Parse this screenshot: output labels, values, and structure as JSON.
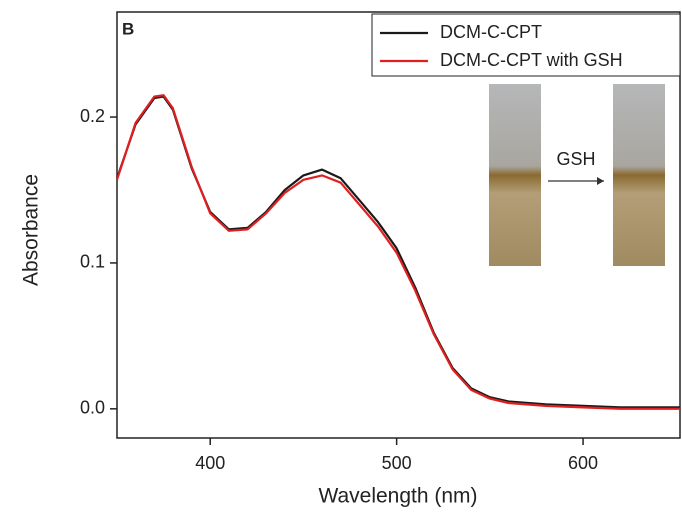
{
  "chart_data": {
    "type": "line",
    "panel_label": "B",
    "xlabel": "Wavelength (nm)",
    "ylabel": "Absorbance",
    "annotation": "GSH",
    "xlim": [
      350,
      652
    ],
    "ylim": [
      -0.02,
      0.272
    ],
    "xticks": [
      400,
      500,
      600
    ],
    "yticks": [
      {
        "value": 0,
        "label": "0.0"
      },
      0.1,
      0.2
    ],
    "legend": "upper right",
    "x": [
      350,
      360,
      370,
      375,
      380,
      390,
      400,
      410,
      420,
      430,
      440,
      450,
      460,
      470,
      480,
      490,
      500,
      510,
      520,
      530,
      540,
      550,
      560,
      580,
      600,
      620,
      652
    ],
    "series": [
      {
        "name": "DCM-C-CPT",
        "color": "#1a1a1a",
        "values": [
          0.158,
          0.195,
          0.213,
          0.214,
          0.205,
          0.165,
          0.135,
          0.123,
          0.124,
          0.135,
          0.15,
          0.16,
          0.164,
          0.158,
          0.143,
          0.128,
          0.11,
          0.083,
          0.052,
          0.028,
          0.014,
          0.008,
          0.005,
          0.003,
          0.002,
          0.001,
          0.001
        ]
      },
      {
        "name": "DCM-C-CPT with GSH",
        "color": "#e02020",
        "values": [
          0.157,
          0.196,
          0.214,
          0.215,
          0.206,
          0.166,
          0.134,
          0.122,
          0.123,
          0.134,
          0.148,
          0.157,
          0.16,
          0.155,
          0.14,
          0.125,
          0.107,
          0.081,
          0.051,
          0.027,
          0.013,
          0.007,
          0.004,
          0.002,
          0.001,
          0.0,
          0.0
        ]
      }
    ]
  }
}
